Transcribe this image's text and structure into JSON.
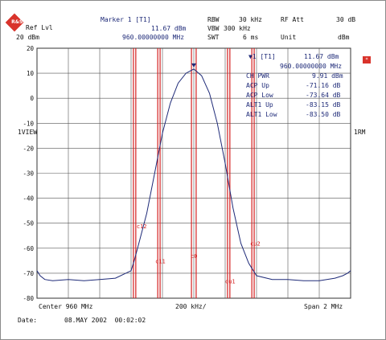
{
  "header": {
    "ref_lvl_label": "Ref Lvl",
    "ref_lvl_value": "20 dBm",
    "marker_title": "Marker 1 [T1]",
    "marker_level": "11.67 dBm",
    "marker_freq": "960.00000000 MHz",
    "rbw_label": "RBW",
    "rbw_value": "30 kHz",
    "vbw_label": "VBW",
    "vbw_value": "300 kHz",
    "swt_label": "SWT",
    "swt_value": "6 ms",
    "rf_att_label": "RF Att",
    "rf_att_value": "30 dB",
    "unit_label": "Unit",
    "unit_value": "dBm"
  },
  "side_labels": {
    "left": "1VIEW",
    "right": "1RM"
  },
  "logo_text": "R&S",
  "readout": {
    "marker_line_label": "▼1 [T1]",
    "marker_line_value": "11.67 dBm",
    "freq_value": "960.00000000 MHz",
    "rows": [
      {
        "label": "CH PWR",
        "value": "9.91 dBm"
      },
      {
        "label": "ACP Up",
        "value": "-71.16 dB"
      },
      {
        "label": "ACP Low",
        "value": "-73.64 dB"
      },
      {
        "label": "ALT1 Up",
        "value": "-83.15 dB"
      },
      {
        "label": "ALT1 Low",
        "value": "-83.50 dB"
      }
    ]
  },
  "footer": {
    "center": "Center 960 MHz",
    "div": "200 kHz/",
    "span": "Span 2 MHz",
    "date_label": "Date:",
    "date_value": "08.MAY 2002  00:02:02"
  },
  "colors": {
    "trace": "#1e2a78",
    "channel_lines": "#d42020",
    "text": "#1e2a78"
  },
  "chart_data": {
    "type": "line",
    "title": "",
    "xlabel": "",
    "ylabel": "",
    "xlim": [
      959,
      961
    ],
    "ylim": [
      -80,
      20
    ],
    "yticks": [
      20,
      10,
      0,
      -10,
      -20,
      -30,
      -40,
      -50,
      -60,
      -70,
      -80
    ],
    "grid": true,
    "series": [
      {
        "x": [
          959.0,
          959.02,
          959.05,
          959.1,
          959.2,
          959.3,
          959.4,
          959.5,
          959.6,
          959.62,
          959.65,
          959.7,
          959.75,
          959.8,
          959.85,
          959.9,
          959.95,
          960.0,
          960.05,
          960.1,
          960.15,
          960.2,
          960.25,
          960.3,
          960.35,
          960.38,
          960.4,
          960.5,
          960.6,
          960.7,
          960.8,
          960.9,
          960.95,
          960.98,
          961.0
        ],
        "y": [
          -69,
          -71,
          -72.5,
          -73,
          -72.5,
          -73,
          -72.5,
          -72,
          -69,
          -65,
          -58,
          -46,
          -30,
          -14,
          -2,
          6,
          10,
          11.67,
          9,
          2,
          -10,
          -26,
          -44,
          -58,
          -66,
          -69,
          -71,
          -72.5,
          -72.5,
          -73,
          -73,
          -72,
          -71,
          -70,
          -69
        ]
      }
    ],
    "channel_markers": [
      {
        "label": "C0",
        "x": [
          959.985,
          960.015
        ]
      },
      {
        "label": "C11",
        "x": [
          959.77,
          959.785
        ]
      },
      {
        "label": "C12",
        "x": [
          959.615,
          959.63
        ]
      },
      {
        "label": "CU1",
        "x": [
          960.215,
          960.23
        ]
      },
      {
        "label": "CU2",
        "x": [
          960.37,
          960.385
        ]
      }
    ],
    "annotations": [
      "c12",
      "c11",
      "c0",
      "cu1",
      "cu2"
    ]
  }
}
